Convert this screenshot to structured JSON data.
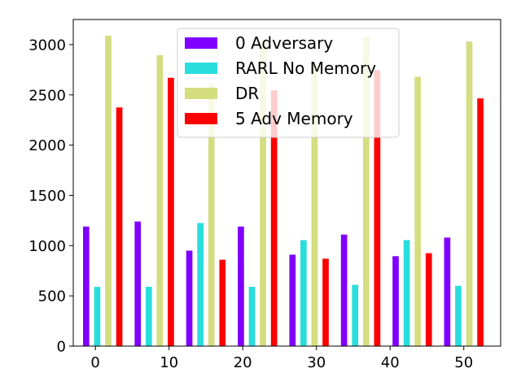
{
  "chart_data": {
    "type": "bar",
    "x": [
      1,
      8,
      15,
      22,
      29,
      36,
      43,
      50
    ],
    "xlim": [
      -3,
      55
    ],
    "ylim": [
      0,
      3250
    ],
    "xticks": [
      0,
      10,
      20,
      30,
      40,
      50
    ],
    "xtick_labels": [
      "0",
      "10",
      "20",
      "30",
      "40",
      "50"
    ],
    "yticks": [
      0,
      500,
      1000,
      1500,
      2000,
      2500,
      3000
    ],
    "ytick_labels": [
      "0",
      "500",
      "1000",
      "1500",
      "2000",
      "2500",
      "3000"
    ],
    "grid": false,
    "legend_position": "top-center",
    "series": [
      {
        "name": "0 Adversary",
        "color": "#8000ff",
        "alpha": 1.0,
        "values": [
          1190,
          1240,
          950,
          1190,
          910,
          1110,
          895,
          1080
        ]
      },
      {
        "name": "RARL No Memory",
        "color": "#2adddd",
        "alpha": 1.0,
        "values": [
          590,
          590,
          1225,
          590,
          1055,
          610,
          1055,
          600
        ]
      },
      {
        "name": "DR",
        "color": "#d4dd80",
        "alpha": 1.0,
        "values": [
          3090,
          2895,
          2610,
          3020,
          2800,
          3080,
          2680,
          3030
        ]
      },
      {
        "name": "5 Adv Memory",
        "color": "#ff0000",
        "alpha": 1.0,
        "values": [
          2375,
          2670,
          860,
          2545,
          870,
          2745,
          925,
          2465
        ]
      }
    ]
  }
}
